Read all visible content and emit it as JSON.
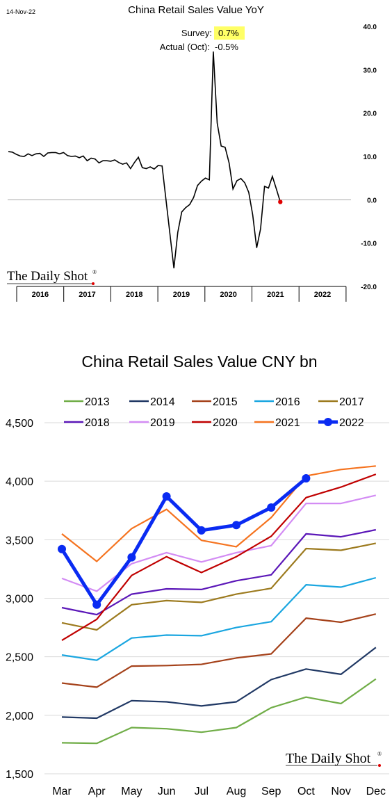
{
  "chart_data": [
    {
      "type": "line",
      "date_label": "14-Nov-22",
      "title": "China Retail Sales Value YoY",
      "annotations": {
        "survey_label": "Survey:",
        "survey_value": "0.7%",
        "actual_label": "Actual (Oct):",
        "actual_value": "-0.5%"
      },
      "brand": "The Daily Shot",
      "brand_mark": "®",
      "ylim": [
        -20,
        40
      ],
      "yticks": [
        "40.0",
        "30.0",
        "20.0",
        "10.0",
        "0.0",
        "-10.0",
        "-20.0"
      ],
      "ytick_values": [
        40,
        30,
        20,
        10,
        0,
        -10,
        -20
      ],
      "years": [
        "2016",
        "2017",
        "2018",
        "2019",
        "2020",
        "2021",
        "2022"
      ],
      "x_start": "2016-01",
      "series": [
        {
          "values": [
            11.1,
            11.0,
            10.5,
            10.1,
            10.0,
            10.6,
            10.2,
            10.6,
            10.7,
            10.0,
            10.8,
            10.9,
            10.9,
            10.6,
            10.9,
            10.2,
            10.0,
            10.1,
            9.7,
            10.1,
            9.0,
            9.6,
            9.4,
            8.5,
            9.0,
            9.0,
            8.9,
            9.2,
            8.6,
            8.2,
            8.5,
            7.2,
            8.6,
            9.8,
            7.4,
            7.2,
            7.6,
            7.1,
            7.9,
            7.8,
            -15.8,
            -7.5,
            -2.8,
            -1.8,
            -1.1,
            0.5,
            3.3,
            4.3,
            5.0,
            4.6,
            34.2,
            17.7,
            12.4,
            12.1,
            8.5,
            2.5,
            4.4,
            4.9,
            3.9,
            1.7,
            -3.5,
            -11.1,
            -6.7,
            3.1,
            2.7,
            5.4,
            2.5,
            -0.5
          ],
          "highlight_last": true
        }
      ],
      "colors": {
        "line": "#000000",
        "last_point": "#e00000",
        "zero_line": "#a6a6a6",
        "survey_bg": "#ffff66"
      }
    },
    {
      "type": "line",
      "title": "China Retail Sales Value CNY bn",
      "categories": [
        "Mar",
        "Apr",
        "May",
        "Jun",
        "Jul",
        "Aug",
        "Sep",
        "Oct",
        "Nov",
        "Dec"
      ],
      "ylim": [
        1500,
        4500
      ],
      "yticks": [
        "4,500",
        "4,000",
        "3,500",
        "3,000",
        "2,500",
        "2,000",
        "1,500"
      ],
      "ytick_values": [
        4500,
        4000,
        3500,
        3000,
        2500,
        2000,
        1500
      ],
      "grid": true,
      "legend": "top",
      "brand": "The Daily Shot",
      "brand_mark": "®",
      "series": [
        {
          "name": "2013",
          "color": "#70ad47",
          "values": [
            1765,
            1760,
            1895,
            1885,
            1855,
            1895,
            2065,
            2155,
            2100,
            2310
          ]
        },
        {
          "name": "2014",
          "color": "#203864",
          "values": [
            1985,
            1975,
            2125,
            2115,
            2080,
            2115,
            2305,
            2395,
            2350,
            2580
          ]
        },
        {
          "name": "2015",
          "color": "#a5421b",
          "values": [
            2275,
            2240,
            2420,
            2425,
            2435,
            2490,
            2525,
            2830,
            2795,
            2865
          ]
        },
        {
          "name": "2016",
          "color": "#1aa6e0",
          "values": [
            2515,
            2470,
            2660,
            2685,
            2680,
            2750,
            2800,
            3115,
            3095,
            3175
          ]
        },
        {
          "name": "2017",
          "color": "#9c7a1e",
          "values": [
            2790,
            2730,
            2945,
            2980,
            2965,
            3035,
            3085,
            3425,
            3410,
            3470
          ]
        },
        {
          "name": "2018",
          "color": "#5b17b8",
          "values": [
            2920,
            2860,
            3035,
            3080,
            3075,
            3150,
            3200,
            3550,
            3525,
            3585
          ]
        },
        {
          "name": "2019",
          "color": "#d38cf4",
          "values": [
            3170,
            3060,
            3295,
            3390,
            3310,
            3390,
            3450,
            3810,
            3810,
            3880
          ]
        },
        {
          "name": "2020",
          "color": "#c00000",
          "values": [
            2640,
            2820,
            3195,
            3355,
            3220,
            3355,
            3530,
            3860,
            3950,
            4060
          ]
        },
        {
          "name": "2021",
          "color": "#f5731f",
          "values": [
            3550,
            3315,
            3595,
            3760,
            3495,
            3440,
            3690,
            4045,
            4100,
            4130
          ]
        },
        {
          "name": "2022",
          "color": "#0a2bf2",
          "values": [
            3420,
            2945,
            3350,
            3870,
            3580,
            3625,
            3775,
            4025,
            null,
            null
          ],
          "markers": true,
          "bold": true
        }
      ]
    }
  ]
}
